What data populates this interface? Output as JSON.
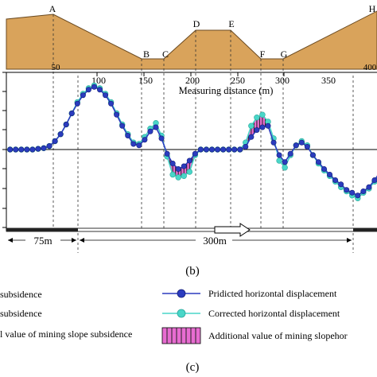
{
  "profile": {
    "point_labels": [
      "A",
      "B",
      "C",
      "D",
      "E",
      "F",
      "G",
      "H"
    ],
    "x_ticks": [
      "50",
      "100",
      "150",
      "200",
      "250",
      "300",
      "350",
      "400"
    ],
    "axis_title": "Measuring distance (m)",
    "terrain_color": "#d9a35b"
  },
  "scale": {
    "left_segment": "75m",
    "right_segment": "300m"
  },
  "panel_labels": {
    "b": "(b)",
    "c": "(c)"
  },
  "legend": {
    "left": [
      "subsidence",
      "subsidence",
      "l value of mining slope subsidence"
    ],
    "right": [
      "Pridicted horizontal displacement",
      "Corrected horizontal displacement",
      "Additional value of mining slopehor"
    ]
  },
  "chart_data": {
    "type": "line",
    "x_unit": "m",
    "x": [
      4,
      10,
      16,
      22,
      28,
      34,
      40,
      46,
      52,
      58,
      64,
      70,
      76,
      82,
      88,
      94,
      100,
      106,
      112,
      118,
      124,
      130,
      136,
      142,
      148,
      154,
      160,
      166,
      172,
      178,
      184,
      190,
      196,
      202,
      208,
      214,
      220,
      226,
      232,
      238,
      244,
      250,
      256,
      262,
      268,
      274,
      280,
      286,
      292,
      298,
      304,
      310,
      316,
      322,
      328,
      334,
      340,
      346,
      352,
      358,
      364,
      370,
      376,
      382,
      388,
      394,
      400,
      406,
      412,
      418
    ],
    "series": [
      {
        "name": "Pridicted horizontal displacement",
        "color": "#2b3cbf",
        "values": [
          0,
          0,
          0,
          0,
          0,
          0.05,
          0.1,
          0.25,
          0.6,
          1.1,
          1.8,
          2.6,
          3.3,
          3.9,
          4.3,
          4.5,
          4.3,
          3.9,
          3.3,
          2.5,
          1.7,
          1.0,
          0.4,
          0.3,
          0.7,
          1.3,
          1.6,
          0.8,
          -0.3,
          -1.0,
          -1.4,
          -1.2,
          -0.8,
          -0.3,
          0,
          0,
          0,
          0,
          0,
          0,
          0,
          0,
          0.2,
          0.9,
          1.4,
          1.6,
          1.7,
          0.5,
          -0.4,
          -0.9,
          -0.3,
          0.3,
          0.5,
          0.2,
          -0.4,
          -0.9,
          -1.4,
          -1.8,
          -2.2,
          -2.5,
          -2.9,
          -3.1,
          -3.3,
          -3.0,
          -2.7,
          -2.2,
          -1.6,
          -1.0,
          -0.5,
          -0.1
        ]
      },
      {
        "name": "Corrected horizontal displacement",
        "color": "#49d6c8",
        "values": [
          0,
          0,
          0,
          0,
          0,
          0.05,
          0.1,
          0.25,
          0.6,
          1.1,
          1.8,
          2.6,
          3.4,
          4.0,
          4.4,
          4.6,
          4.4,
          4.0,
          3.4,
          2.6,
          1.8,
          1.1,
          0.5,
          0.4,
          0.9,
          1.5,
          1.9,
          1.0,
          -0.5,
          -1.8,
          -2.0,
          -1.9,
          -1.6,
          -0.4,
          0,
          0,
          0,
          0,
          0,
          0,
          0,
          0,
          0.5,
          1.7,
          2.3,
          2.5,
          2.0,
          0.8,
          -0.8,
          -1.3,
          -0.4,
          0.3,
          0.6,
          0.3,
          -0.4,
          -1.0,
          -1.5,
          -1.9,
          -2.3,
          -2.7,
          -3.0,
          -3.3,
          -3.5,
          -3.1,
          -2.8,
          -2.3,
          -1.7,
          -1.1,
          -0.5,
          -0.1
        ]
      }
    ]
  }
}
